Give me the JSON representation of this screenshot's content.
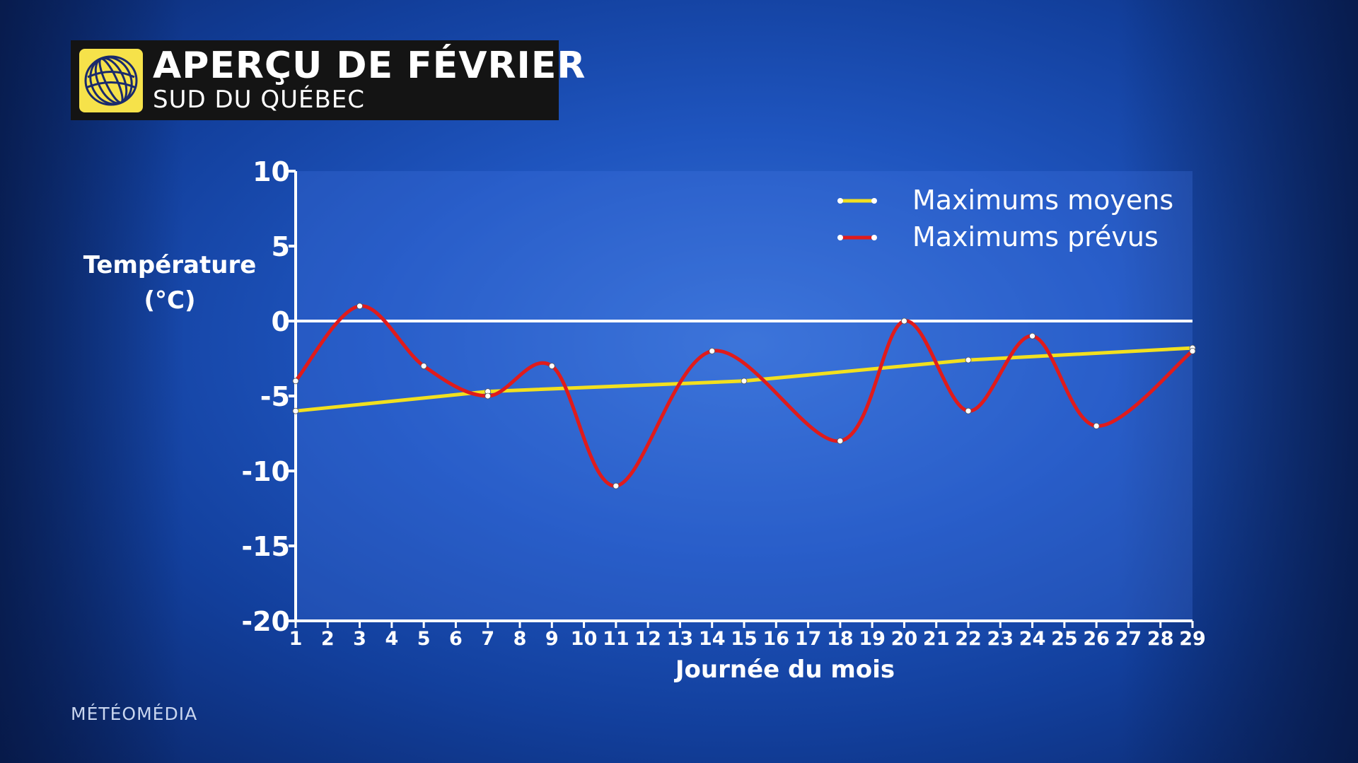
{
  "header": {
    "title": "APERÇU DE FÉVRIER",
    "subtitle": "SUD DU QUÉBEC",
    "logo_icon": "globe-logo-icon"
  },
  "brand": "MÉTÉOMÉDIA",
  "colors": {
    "average_line": "#f2e01f",
    "forecast_line": "#e01b1b",
    "title_box": "#141414",
    "logo_bg": "#f6e24a"
  },
  "chart_data": {
    "type": "line",
    "title": "APERÇU DE FÉVRIER",
    "subtitle": "SUD DU QUÉBEC",
    "xlabel": "Journée du mois",
    "ylabel": [
      "Température",
      "(°C)"
    ],
    "xlim": [
      1,
      29
    ],
    "ylim": [
      -20,
      10
    ],
    "x_ticks": [
      1,
      2,
      3,
      4,
      5,
      6,
      7,
      8,
      9,
      10,
      11,
      12,
      13,
      14,
      15,
      16,
      17,
      18,
      19,
      20,
      21,
      22,
      23,
      24,
      25,
      26,
      27,
      28,
      29
    ],
    "y_ticks": [
      10,
      5,
      0,
      -5,
      -10,
      -15,
      -20
    ],
    "zero_line": true,
    "legend_position": "top-right",
    "series": [
      {
        "name": "Maximums moyens",
        "color": "#f2e01f",
        "x": [
          1,
          7,
          15,
          22,
          29
        ],
        "values": [
          -6,
          -4.7,
          -4,
          -2.6,
          -1.8
        ]
      },
      {
        "name": "Maximums prévus",
        "color": "#e01b1b",
        "x": [
          1,
          3,
          5,
          7,
          9,
          11,
          14,
          18,
          20,
          22,
          24,
          26,
          29
        ],
        "values": [
          -4,
          1,
          -3,
          -5,
          -3,
          -11,
          -2,
          -8,
          0,
          -6,
          -1,
          -7,
          -2
        ]
      }
    ]
  }
}
